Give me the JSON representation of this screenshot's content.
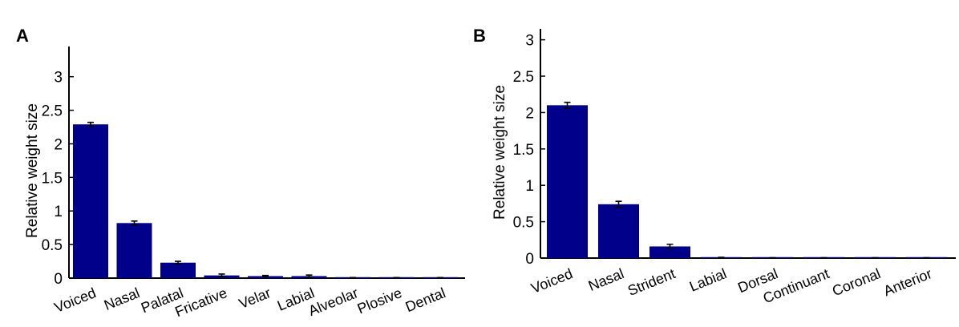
{
  "chart_data": [
    {
      "type": "bar",
      "panel": "A",
      "categories": [
        "Voiced",
        "Nasal",
        "Palatal",
        "Fricative",
        "Velar",
        "Labial",
        "Alveolar",
        "Plosive",
        "Dental"
      ],
      "values": [
        2.29,
        0.82,
        0.23,
        0.04,
        0.03,
        0.03,
        0.005,
        0.005,
        0.005
      ],
      "errors": [
        0.03,
        0.03,
        0.02,
        0.02,
        0.01,
        0.015,
        0.003,
        0.003,
        0.003
      ],
      "ylabel": "Relative weight size",
      "xlabel": "",
      "title": "",
      "ylim": [
        0,
        3.45
      ],
      "yticks": [
        0,
        0.5,
        1,
        1.5,
        2,
        2.5,
        3
      ],
      "ytick_labels": [
        "0",
        "0.5",
        "1",
        "1.5",
        "2",
        "2.5",
        "3"
      ],
      "bar_color": "#00008b",
      "grid": false
    },
    {
      "type": "bar",
      "panel": "B",
      "categories": [
        "Voiced",
        "Nasal",
        "Strident",
        "Labial",
        "Dorsal",
        "Continuant",
        "Coronal",
        "Anterior"
      ],
      "values": [
        2.1,
        0.74,
        0.16,
        0.005,
        0.003,
        0.003,
        0.003,
        0.003
      ],
      "errors": [
        0.04,
        0.04,
        0.03,
        0.005,
        0.002,
        0.002,
        0.002,
        0.002
      ],
      "ylabel": "Relative weight size",
      "xlabel": "",
      "title": "",
      "ylim": [
        0,
        3.15
      ],
      "yticks": [
        0,
        0.5,
        1,
        1.5,
        2,
        2.5,
        3
      ],
      "ytick_labels": [
        "0",
        "0.5",
        "1",
        "1.5",
        "2",
        "2.5",
        "3"
      ],
      "bar_color": "#00008b",
      "grid": false
    }
  ]
}
